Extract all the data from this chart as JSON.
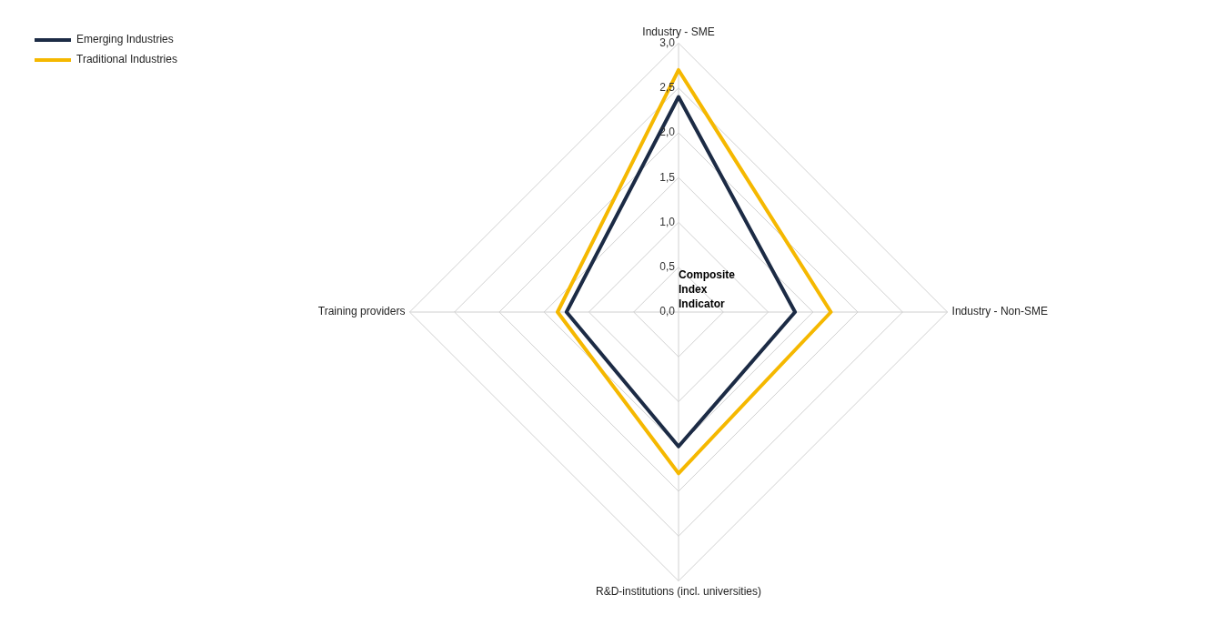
{
  "chart_data": {
    "type": "radar",
    "categories": [
      "Industry - SME",
      "Industry - Non-SME",
      "R&D-institutions (incl. universities)",
      "Training providers"
    ],
    "series": [
      {
        "name": "Emerging Industries",
        "color": "#1c2b45",
        "values": [
          2.4,
          1.3,
          1.5,
          1.25
        ]
      },
      {
        "name": "Traditional Industries",
        "color": "#f5b800",
        "values": [
          2.7,
          1.7,
          1.8,
          1.35
        ]
      }
    ],
    "ylim": [
      0,
      3
    ],
    "yticks": [
      {
        "value": 0,
        "label": "0,0"
      },
      {
        "value": 0.5,
        "label": "0,5"
      },
      {
        "value": 1,
        "label": "1,0"
      },
      {
        "value": 1.5,
        "label": "1,5"
      },
      {
        "value": 2,
        "label": "2,0"
      },
      {
        "value": 2.5,
        "label": "2,5"
      },
      {
        "value": 3,
        "label": "3,0"
      }
    ],
    "annotations": [
      "Composite Index Indicator"
    ],
    "legend": "top left",
    "grid": true,
    "marker": "none"
  }
}
